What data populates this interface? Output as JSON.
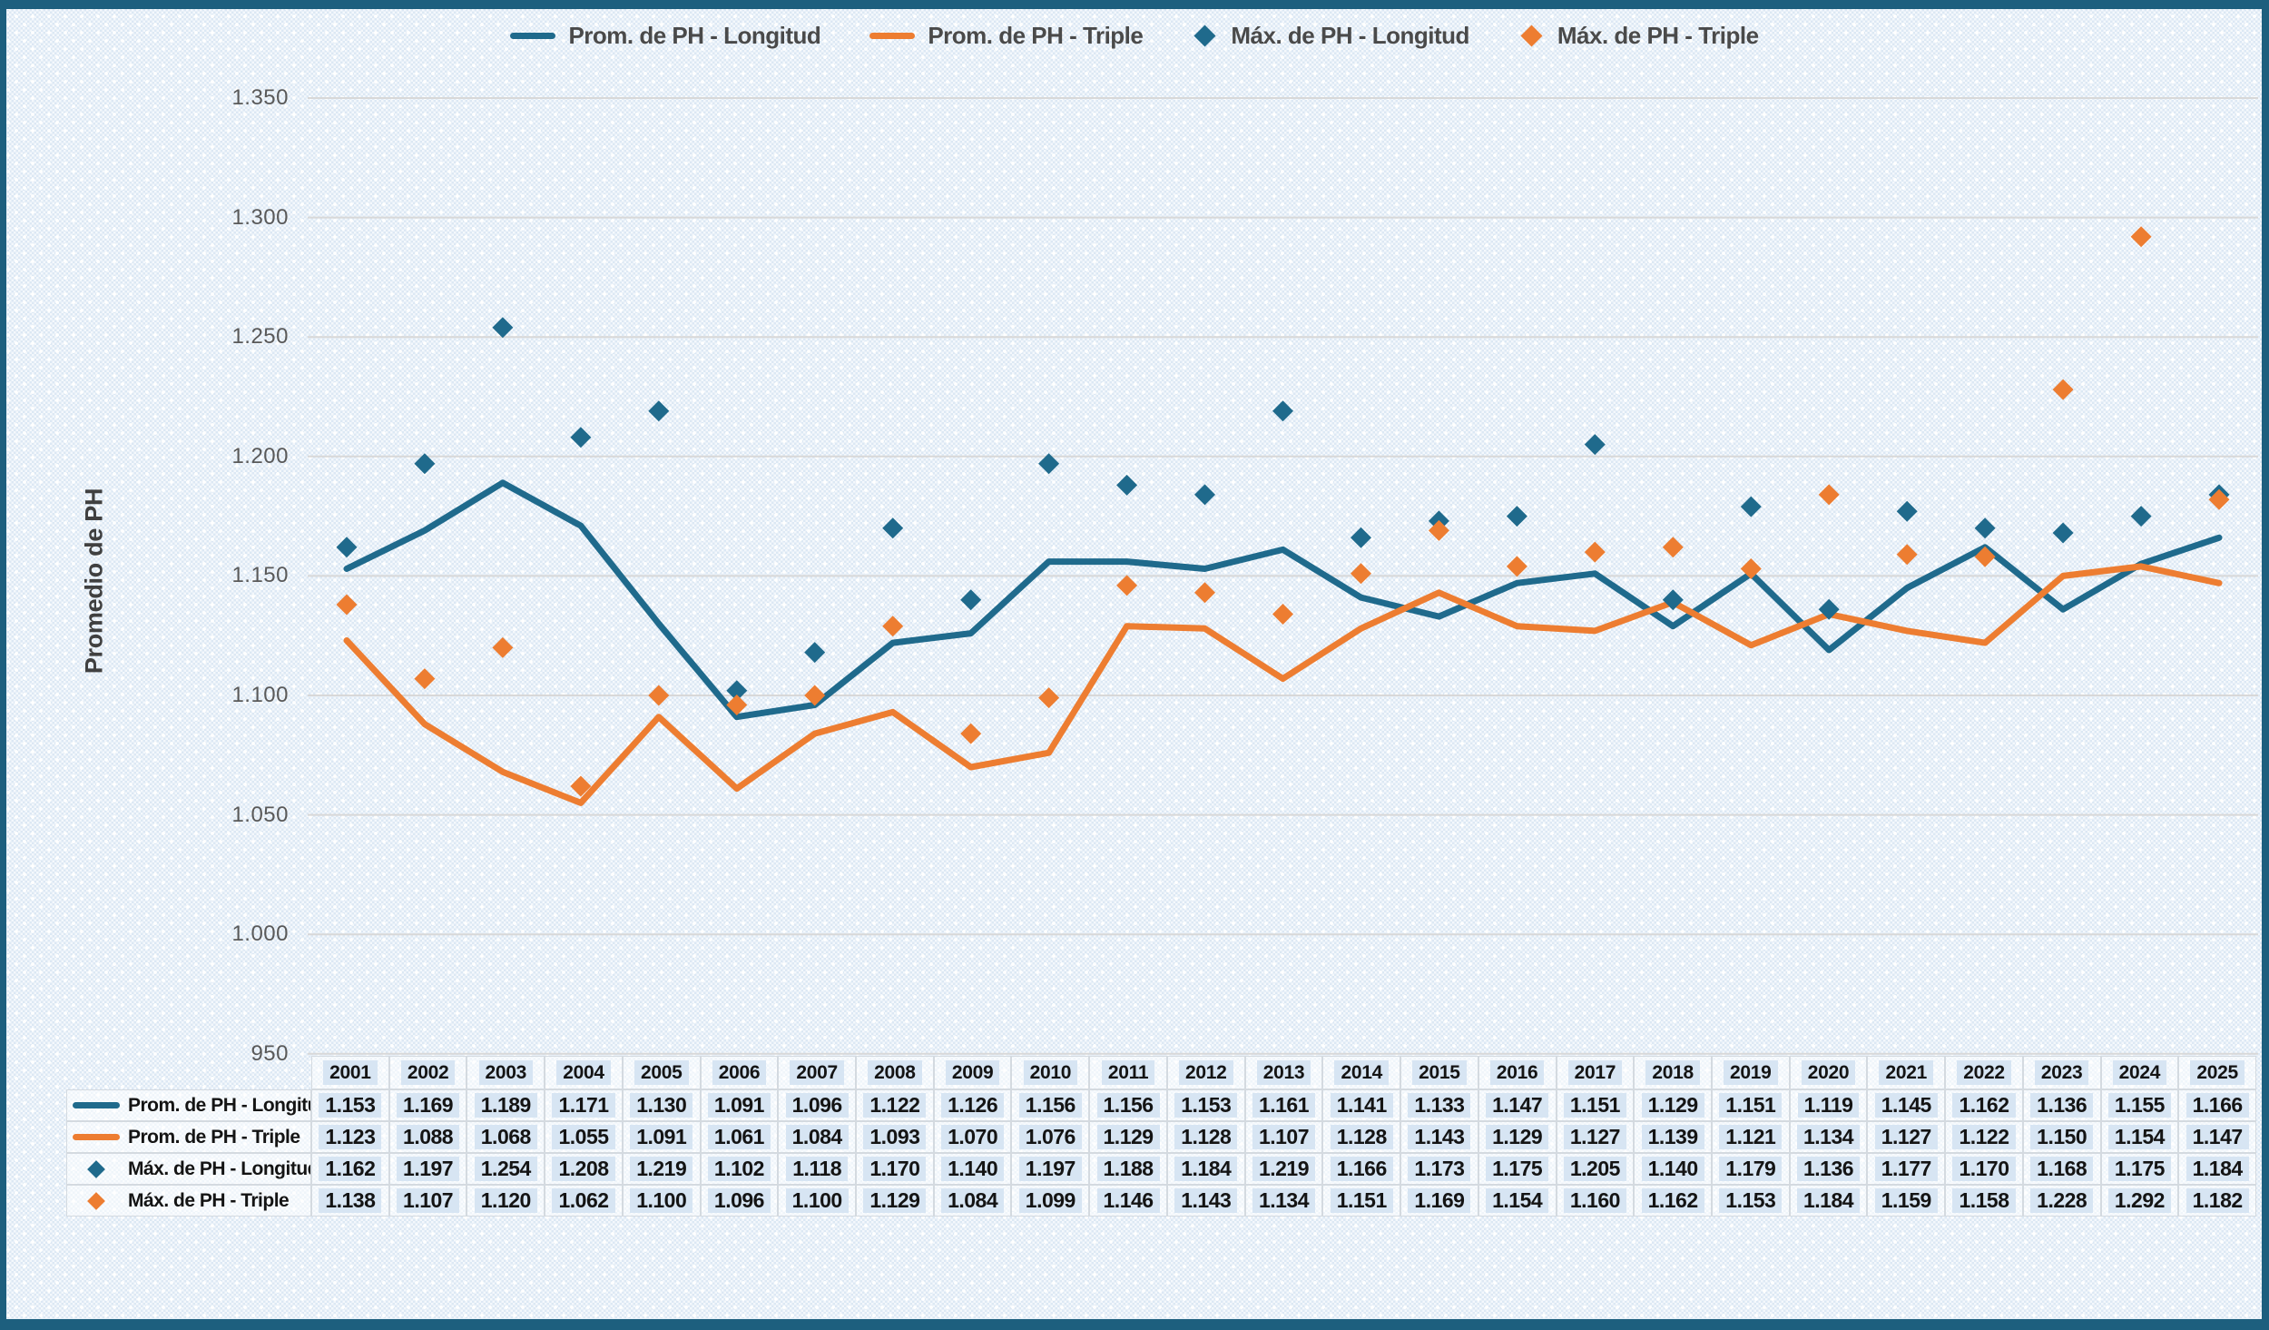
{
  "frame_color": "#1d5f7e",
  "colors": {
    "series_blue": "#1f6a8c",
    "series_orange": "#ed7d31",
    "gridline": "#d8d8d8",
    "tick_text": "#595959",
    "legend_text": "#4a4a4a",
    "table_highlight": "#d7e5f3"
  },
  "legend": {
    "items": [
      {
        "label": "Prom. de PH - Longitud",
        "marker": "line",
        "color": "#1f6a8c"
      },
      {
        "label": "Prom. de PH - Triple",
        "marker": "line",
        "color": "#ed7d31"
      },
      {
        "label": "Máx. de PH - Longitud",
        "marker": "diamond",
        "color": "#1f6a8c"
      },
      {
        "label": "Máx. de PH - Triple",
        "marker": "diamond",
        "color": "#ed7d31"
      }
    ]
  },
  "chart_data": {
    "type": "line",
    "title": "",
    "xlabel": "",
    "ylabel": "Promedio de PH",
    "grid": "horizontal",
    "legend_position": "top",
    "ylim": [
      0.95,
      1.35
    ],
    "y_ticks": [
      "1.350",
      "1.300",
      "1.250",
      "1.200",
      "1.150",
      "1.100",
      "1.050",
      "1.000",
      "950"
    ],
    "y_tick_values": [
      1.35,
      1.3,
      1.25,
      1.2,
      1.15,
      1.1,
      1.05,
      1.0,
      0.95
    ],
    "categories": [
      "2001",
      "2002",
      "2003",
      "2004",
      "2005",
      "2006",
      "2007",
      "2008",
      "2009",
      "2010",
      "2011",
      "2012",
      "2013",
      "2014",
      "2015",
      "2016",
      "2017",
      "2018",
      "2019",
      "2020",
      "2021",
      "2022",
      "2023",
      "2024",
      "2025"
    ],
    "series": [
      {
        "name": "Prom. de PH - Longitud",
        "type": "line",
        "color": "#1f6a8c",
        "values": [
          1.153,
          1.169,
          1.189,
          1.171,
          1.13,
          1.091,
          1.096,
          1.122,
          1.126,
          1.156,
          1.156,
          1.153,
          1.161,
          1.141,
          1.133,
          1.147,
          1.151,
          1.129,
          1.151,
          1.119,
          1.145,
          1.162,
          1.136,
          1.155,
          1.166
        ]
      },
      {
        "name": "Prom. de PH - Triple",
        "type": "line",
        "color": "#ed7d31",
        "values": [
          1.123,
          1.088,
          1.068,
          1.055,
          1.091,
          1.061,
          1.084,
          1.093,
          1.07,
          1.076,
          1.129,
          1.128,
          1.107,
          1.128,
          1.143,
          1.129,
          1.127,
          1.139,
          1.121,
          1.134,
          1.127,
          1.122,
          1.15,
          1.154,
          1.147
        ]
      },
      {
        "name": "Máx. de PH - Longitud",
        "type": "scatter",
        "color": "#1f6a8c",
        "values": [
          1.162,
          1.197,
          1.254,
          1.208,
          1.219,
          1.102,
          1.118,
          1.17,
          1.14,
          1.197,
          1.188,
          1.184,
          1.219,
          1.166,
          1.173,
          1.175,
          1.205,
          1.14,
          1.179,
          1.136,
          1.177,
          1.17,
          1.168,
          1.175,
          1.184
        ]
      },
      {
        "name": "Máx. de PH - Triple",
        "type": "scatter",
        "color": "#ed7d31",
        "values": [
          1.138,
          1.107,
          1.12,
          1.062,
          1.1,
          1.096,
          1.1,
          1.129,
          1.084,
          1.099,
          1.146,
          1.143,
          1.134,
          1.151,
          1.169,
          1.154,
          1.16,
          1.162,
          1.153,
          1.184,
          1.159,
          1.158,
          1.228,
          1.292,
          1.182
        ]
      }
    ]
  },
  "table": {
    "years": [
      "2001",
      "2002",
      "2003",
      "2004",
      "2005",
      "2006",
      "2007",
      "2008",
      "2009",
      "2010",
      "2011",
      "2012",
      "2013",
      "2014",
      "2015",
      "2016",
      "2017",
      "2018",
      "2019",
      "2020",
      "2021",
      "2022",
      "2023",
      "2024",
      "2025"
    ],
    "rows": [
      {
        "label": "Prom. de PH - Longitud",
        "marker": "line",
        "color": "#1f6a8c",
        "values": [
          "1.153",
          "1.169",
          "1.189",
          "1.171",
          "1.130",
          "1.091",
          "1.096",
          "1.122",
          "1.126",
          "1.156",
          "1.156",
          "1.153",
          "1.161",
          "1.141",
          "1.133",
          "1.147",
          "1.151",
          "1.129",
          "1.151",
          "1.119",
          "1.145",
          "1.162",
          "1.136",
          "1.155",
          "1.166"
        ]
      },
      {
        "label": "Prom. de PH - Triple",
        "marker": "line",
        "color": "#ed7d31",
        "values": [
          "1.123",
          "1.088",
          "1.068",
          "1.055",
          "1.091",
          "1.061",
          "1.084",
          "1.093",
          "1.070",
          "1.076",
          "1.129",
          "1.128",
          "1.107",
          "1.128",
          "1.143",
          "1.129",
          "1.127",
          "1.139",
          "1.121",
          "1.134",
          "1.127",
          "1.122",
          "1.150",
          "1.154",
          "1.147"
        ]
      },
      {
        "label": "Máx. de PH - Longitud",
        "marker": "diamond",
        "color": "#1f6a8c",
        "values": [
          "1.162",
          "1.197",
          "1.254",
          "1.208",
          "1.219",
          "1.102",
          "1.118",
          "1.170",
          "1.140",
          "1.197",
          "1.188",
          "1.184",
          "1.219",
          "1.166",
          "1.173",
          "1.175",
          "1.205",
          "1.140",
          "1.179",
          "1.136",
          "1.177",
          "1.170",
          "1.168",
          "1.175",
          "1.184"
        ]
      },
      {
        "label": "Máx. de PH - Triple",
        "marker": "diamond",
        "color": "#ed7d31",
        "values": [
          "1.138",
          "1.107",
          "1.120",
          "1.062",
          "1.100",
          "1.096",
          "1.100",
          "1.129",
          "1.084",
          "1.099",
          "1.146",
          "1.143",
          "1.134",
          "1.151",
          "1.169",
          "1.154",
          "1.160",
          "1.162",
          "1.153",
          "1.184",
          "1.159",
          "1.158",
          "1.228",
          "1.292",
          "1.182"
        ]
      }
    ]
  }
}
